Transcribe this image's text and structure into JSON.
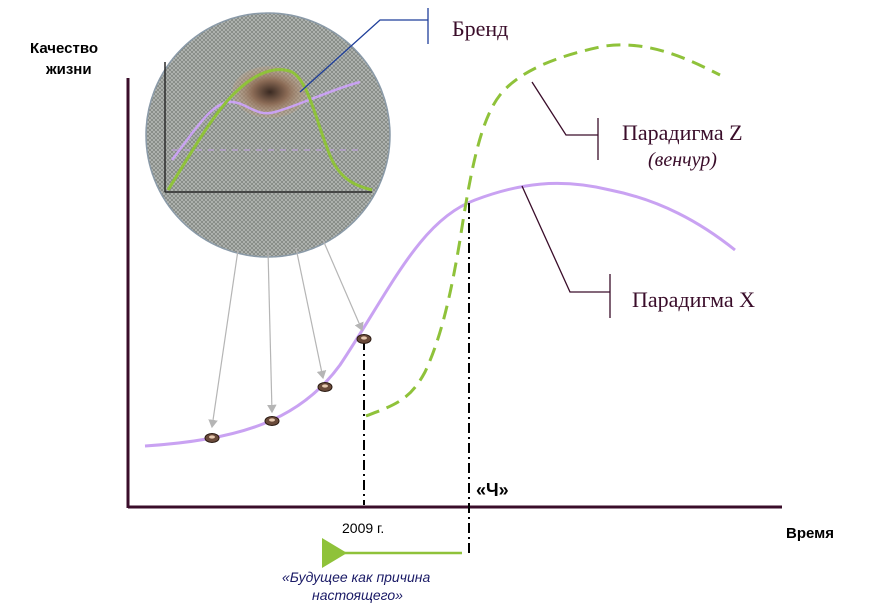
{
  "labels": {
    "y_axis_line1": "Качество",
    "y_axis_line2": "жизни",
    "x_axis": "Время",
    "brand": "Бренд",
    "paradigm_z": "Парадигма Z",
    "paradigm_z_sub": "(венчур)",
    "paradigm_x": "Парадигма X",
    "year_mark": "2009 г.",
    "ch_mark": "«Ч»",
    "note_line1": "«Будущее как причина",
    "note_line2": "настоящего»"
  },
  "colors": {
    "axis": "#3a0d2a",
    "paradigm_x_curve": "#c9a2f2",
    "paradigm_z_curve": "#8fc23a",
    "callout_line": "#3a0d2a",
    "brand_pointer": "#1f3f9a",
    "arrow_back": "#8fc23a",
    "projection_arrows": "#b5b5b5",
    "lens_fill": "#a8aca8"
  },
  "icons": {
    "brand_marker": "brand-dot-icon",
    "back_arrow": "left-arrow-icon"
  }
}
